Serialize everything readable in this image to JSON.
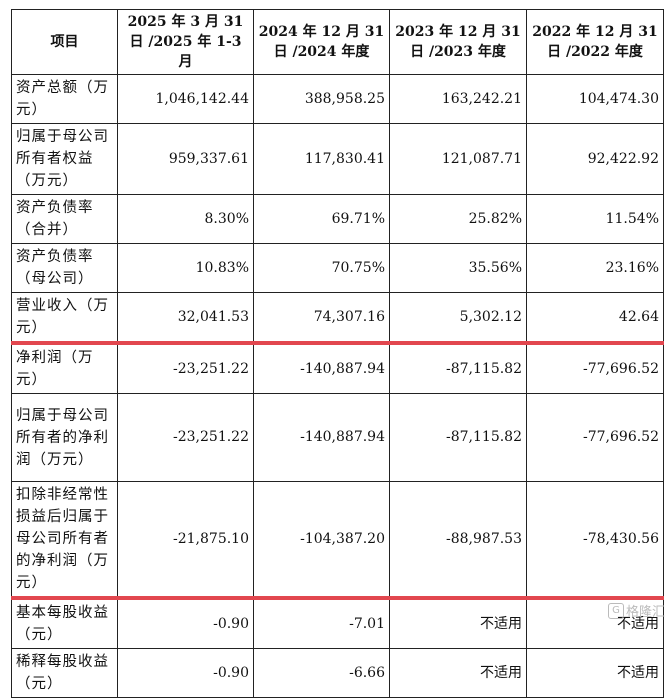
{
  "table": {
    "headers": [
      "项目",
      "2025 年 3 月 31 日 /2025 年 1-3 月",
      "2024 年 12 月 31 日 /2024 年度",
      "2023 年 12 月 31 日 /2023 年度",
      "2022 年 12 月 31 日 /2022 年度"
    ],
    "rows": [
      {
        "label": "资产总额（万元）",
        "values": [
          "1,046,142.44",
          "388,958.25",
          "163,242.21",
          "104,474.30"
        ]
      },
      {
        "label": "归属于母公司所有者权益（万元）",
        "values": [
          "959,337.61",
          "117,830.41",
          "121,087.71",
          "92,422.92"
        ]
      },
      {
        "label": "资产负债率（合并）",
        "values": [
          "8.30%",
          "69.71%",
          "25.82%",
          "11.54%"
        ]
      },
      {
        "label": "资产负债率（母公司）",
        "values": [
          "10.83%",
          "70.75%",
          "35.56%",
          "23.16%"
        ]
      },
      {
        "label": "营业收入（万元）",
        "values": [
          "32,041.53",
          "74,307.16",
          "5,302.12",
          "42.64"
        ]
      },
      {
        "label": "净利润（万元）",
        "values": [
          "-23,251.22",
          "-140,887.94",
          "-87,115.82",
          "-77,696.52"
        ]
      },
      {
        "label": "归属于母公司所有者的净利润（万元）",
        "values": [
          "-23,251.22",
          "-140,887.94",
          "-87,115.82",
          "-77,696.52"
        ]
      },
      {
        "label": "扣除非经常性损益后归属于母公司所有者的净利润（万元）",
        "values": [
          "-21,875.10",
          "-104,387.20",
          "-88,987.53",
          "-78,430.56"
        ]
      },
      {
        "label": "基本每股收益（元）",
        "values": [
          "-0.90",
          "-7.01",
          "不适用",
          "不适用"
        ]
      },
      {
        "label": "稀释每股收益（元）",
        "values": [
          "-0.90",
          "-6.66",
          "不适用",
          "不适用"
        ]
      }
    ]
  },
  "highlight": {
    "color": "#e2474f"
  },
  "watermark": {
    "text": "格隆汇",
    "icon": "g-logo-icon"
  }
}
